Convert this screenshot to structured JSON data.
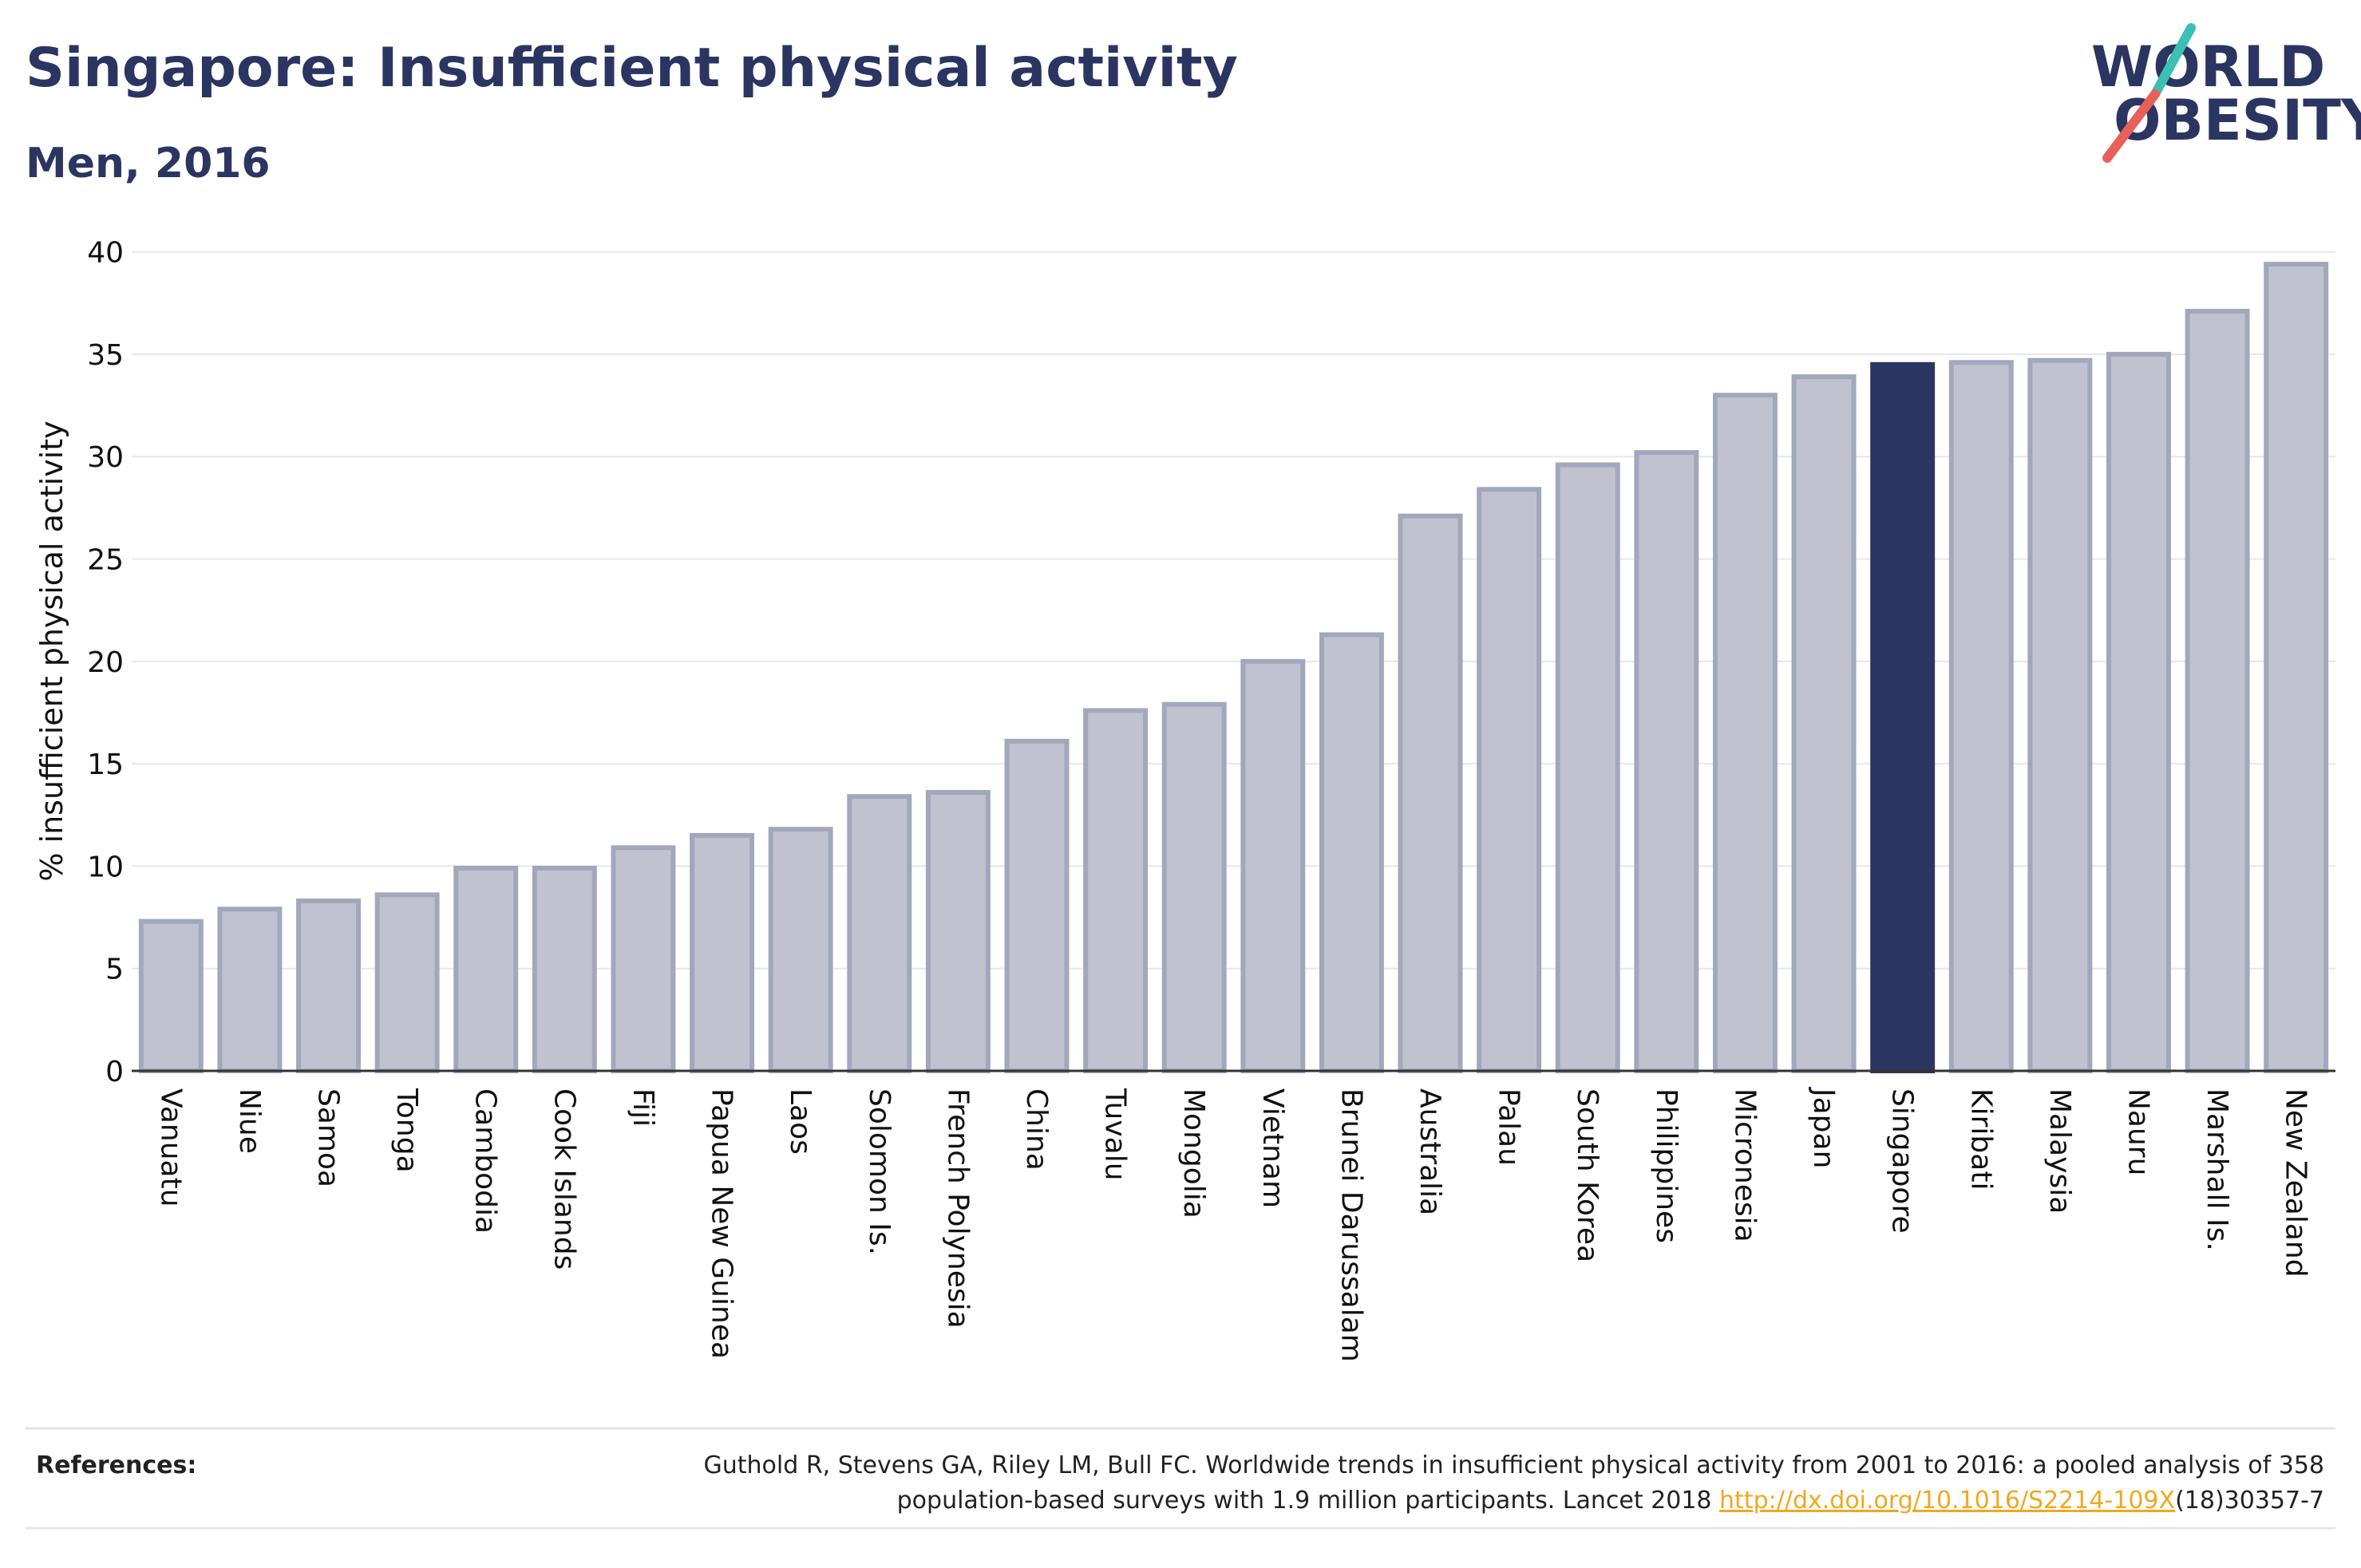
{
  "header": {
    "title": "Singapore: Insufficient physical activity",
    "subtitle": "Men, 2016"
  },
  "logo": {
    "line1": "WORLD",
    "line2": "OBESITY",
    "accent_colors": [
      "#3cc0b5",
      "#e8605a"
    ]
  },
  "chart_data": {
    "type": "bar",
    "title": "Singapore: Insufficient physical activity",
    "subtitle": "Men, 2016",
    "xlabel": "",
    "ylabel": "% insufficient physical activity",
    "ylim": [
      0,
      41
    ],
    "yticks": [
      0,
      5,
      10,
      15,
      20,
      25,
      30,
      35,
      40
    ],
    "grid": true,
    "highlight": "Singapore",
    "colors": {
      "bar_fill": "#c0c3cf",
      "bar_stroke": "#a3a7bb",
      "highlight": "#2b3562"
    },
    "categories": [
      "Vanuatu",
      "Niue",
      "Samoa",
      "Tonga",
      "Cambodia",
      "Cook Islands",
      "Fiji",
      "Papua New Guinea",
      "Laos",
      "Solomon Is.",
      "French Polynesia",
      "China",
      "Tuvalu",
      "Mongolia",
      "Vietnam",
      "Brunei Darussalam",
      "Australia",
      "Palau",
      "South Korea",
      "Philippines",
      "Micronesia",
      "Japan",
      "Singapore",
      "Kiribati",
      "Malaysia",
      "Nauru",
      "Marshall Is.",
      "New Zealand"
    ],
    "values": [
      7.3,
      7.9,
      8.3,
      8.6,
      9.9,
      9.9,
      10.9,
      11.5,
      11.8,
      13.4,
      13.6,
      16.1,
      17.6,
      17.9,
      20.0,
      21.3,
      27.1,
      28.4,
      29.6,
      30.2,
      33.0,
      33.9,
      34.5,
      34.6,
      34.7,
      35.0,
      37.1,
      39.4
    ]
  },
  "references": {
    "label": "References:",
    "line1": "Guthold R, Stevens GA, Riley LM, Bull FC. Worldwide trends in insufficient physical activity from 2001 to 2016: a pooled analysis of 358",
    "line2_prefix": "population-based surveys with 1.9 million participants. Lancet 2018 ",
    "link": "http://dx.doi.org/10.1016/S2214-109X",
    "line2_suffix": "(18)30357-7"
  }
}
